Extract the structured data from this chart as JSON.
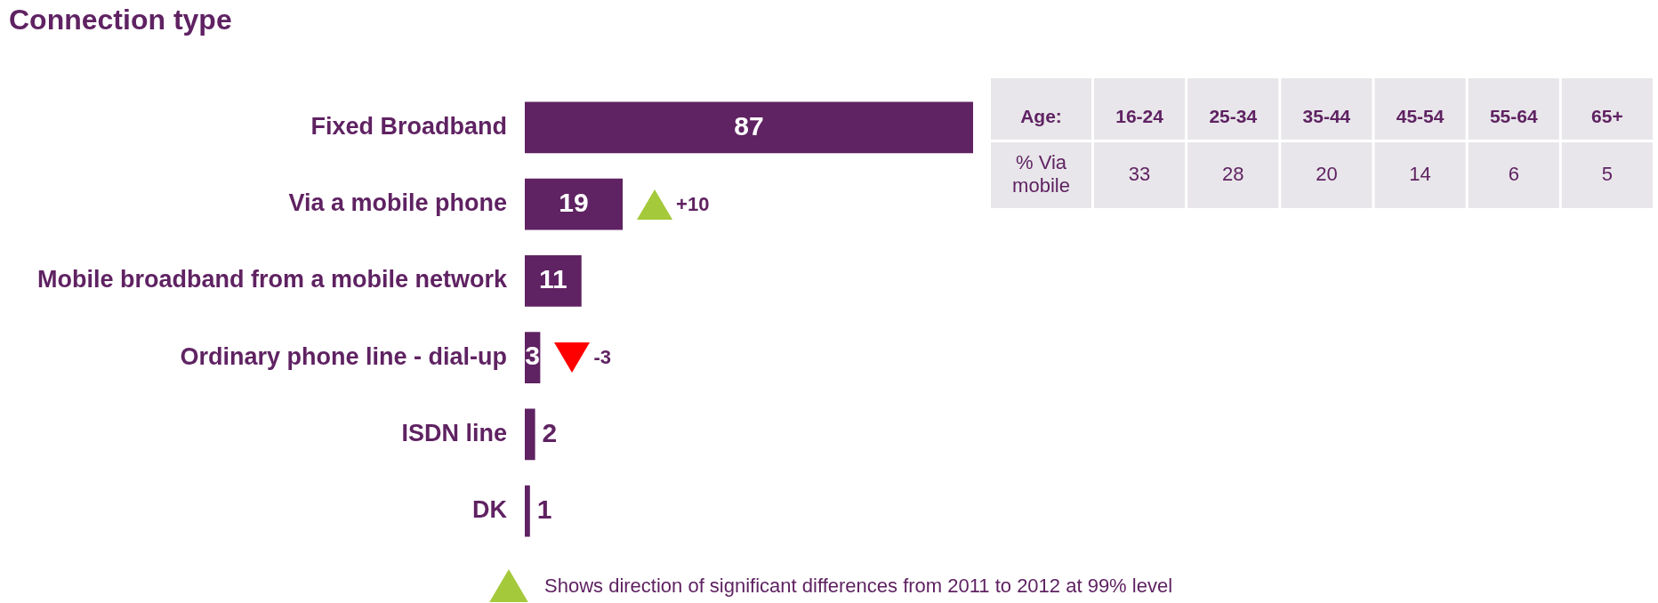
{
  "chart_data": [
    {
      "type": "bar",
      "title": "Connection type",
      "orientation": "horizontal",
      "categories": [
        "Fixed Broadband",
        "Via a mobile phone",
        "Mobile broadband from a mobile network",
        "Ordinary phone line - dial-up",
        "ISDN line",
        "DK"
      ],
      "values": [
        87,
        19,
        11,
        3,
        2,
        1
      ],
      "color": "#5f2262",
      "data_labels": true,
      "legend": false,
      "annotations": [
        {
          "text": "+10",
          "x": 19,
          "y": "Via a mobile phone"
        },
        {
          "text": "-3",
          "x": 3,
          "y": "Ordinary phone line - dial-up"
        },
        "Shows direction of significant differences from 2011 to 2012 at 99% level"
      ]
    },
    {
      "type": "heatmap",
      "xlabel": "Age:",
      "categories": [
        "16-24",
        "25-34",
        "35-44",
        "45-54",
        "55-64",
        "65+"
      ],
      "y_categories": [
        "% Via mobile"
      ],
      "cells": [
        [
          33,
          28,
          20,
          14,
          6,
          5
        ]
      ],
      "data_labels": true
    }
  ]
}
